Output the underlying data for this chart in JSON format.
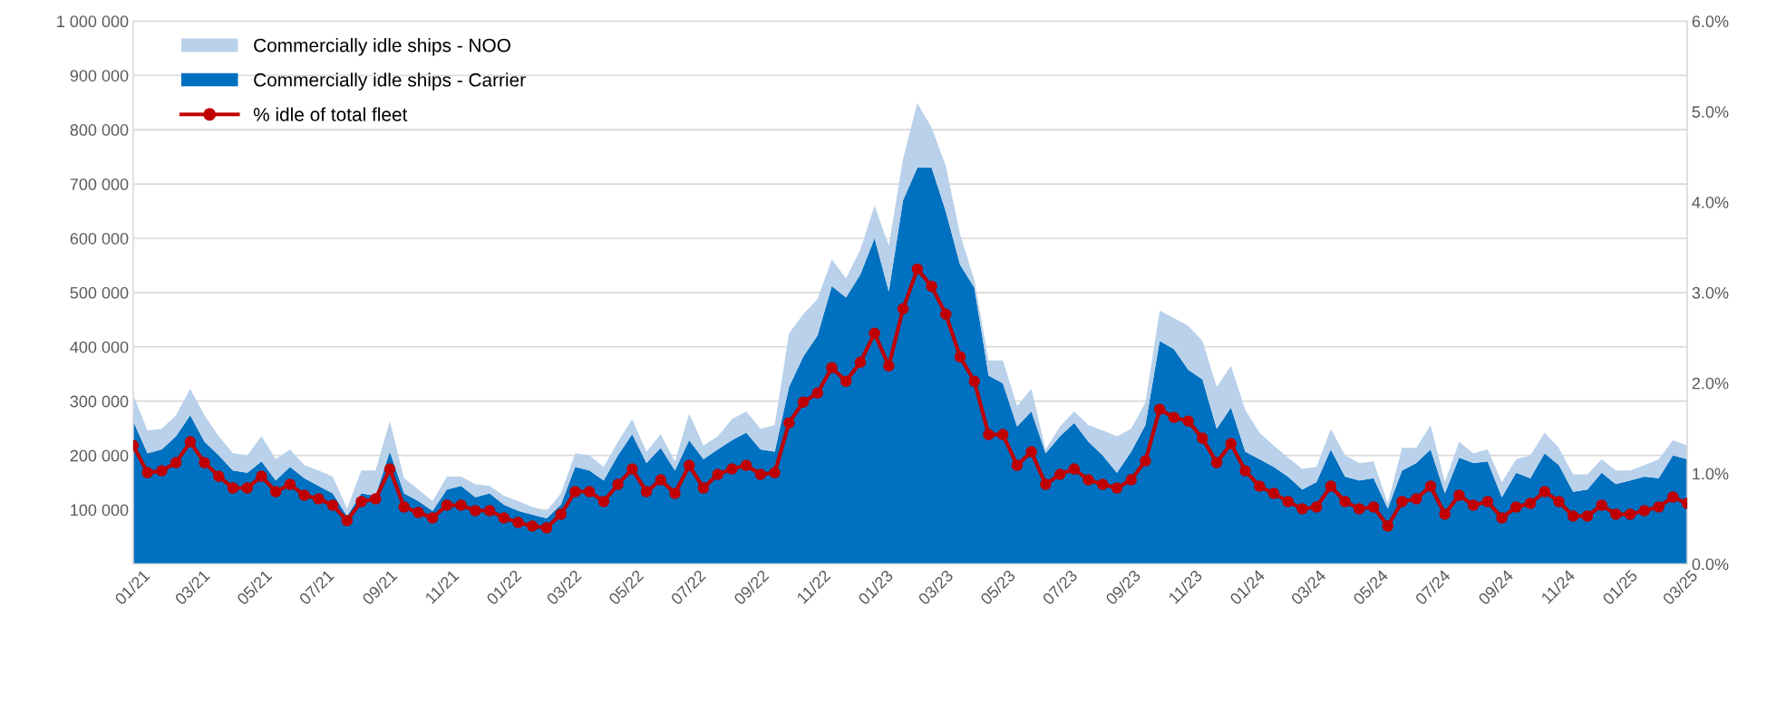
{
  "chart_data": {
    "type": "area",
    "stacked": true,
    "legend": "top left",
    "grid": "y",
    "tick_labels": "xy",
    "x": [
      "2021-01-01",
      "2021-01-15",
      "2021-01-29",
      "2021-02-12",
      "2021-02-26",
      "2021-03-12",
      "2021-03-26",
      "2021-04-09",
      "2021-04-23",
      "2021-05-07",
      "2021-05-21",
      "2021-06-04",
      "2021-06-18",
      "2021-07-02",
      "2021-07-16",
      "2021-07-30",
      "2021-08-13",
      "2021-08-27",
      "2021-09-10",
      "2021-09-24",
      "2021-10-08",
      "2021-10-22",
      "2021-11-05",
      "2021-11-19",
      "2021-12-03",
      "2021-12-17",
      "2021-12-31",
      "2022-01-14",
      "2022-01-28",
      "2022-02-11",
      "2022-02-25",
      "2022-03-11",
      "2022-03-25",
      "2022-04-08",
      "2022-04-22",
      "2022-05-06",
      "2022-05-20",
      "2022-06-03",
      "2022-06-17",
      "2022-07-01",
      "2022-07-15",
      "2022-07-29",
      "2022-08-12",
      "2022-08-26",
      "2022-09-09",
      "2022-09-23",
      "2022-10-07",
      "2022-10-21",
      "2022-11-04",
      "2022-11-18",
      "2022-12-02",
      "2022-12-16",
      "2022-12-30",
      "2023-01-13",
      "2023-01-27",
      "2023-02-10",
      "2023-02-24",
      "2023-03-10",
      "2023-03-24",
      "2023-04-07",
      "2023-04-21",
      "2023-05-05",
      "2023-05-19",
      "2023-06-02",
      "2023-06-16",
      "2023-06-30",
      "2023-07-14",
      "2023-07-28",
      "2023-08-11",
      "2023-08-25",
      "2023-09-08",
      "2023-09-22",
      "2023-10-06",
      "2023-10-20",
      "2023-11-03",
      "2023-11-17",
      "2023-12-01",
      "2023-12-15",
      "2023-12-29",
      "2024-01-12",
      "2024-01-26",
      "2024-02-09",
      "2024-02-23",
      "2024-03-08",
      "2024-03-22",
      "2024-04-05",
      "2024-04-19",
      "2024-05-03",
      "2024-05-17",
      "2024-05-31",
      "2024-06-14",
      "2024-06-28",
      "2024-07-12",
      "2024-07-26",
      "2024-08-09",
      "2024-08-23",
      "2024-09-06",
      "2024-09-20",
      "2024-10-04",
      "2024-10-18",
      "2024-11-01",
      "2024-11-15",
      "2024-11-29",
      "2024-12-13",
      "2024-12-27",
      "2025-01-10",
      "2025-01-24",
      "2025-02-07",
      "2025-02-21",
      "2025-03-07"
    ],
    "series": [
      {
        "name": "Commercially idle ships - Carrier",
        "color": "#0070c0",
        "values": [
          263000,
          204000,
          211000,
          235000,
          274000,
          225000,
          200000,
          172000,
          168000,
          189000,
          154000,
          179000,
          158000,
          144000,
          130000,
          88000,
          130000,
          126000,
          207000,
          130000,
          116000,
          98000,
          137000,
          144000,
          123000,
          130000,
          109000,
          98000,
          91000,
          84000,
          109000,
          179000,
          172000,
          154000,
          200000,
          239000,
          186000,
          214000,
          172000,
          228000,
          193000,
          211000,
          228000,
          242000,
          211000,
          207000,
          326000,
          382000,
          421000,
          512000,
          491000,
          533000,
          600000,
          502000,
          670000,
          730000,
          730000,
          649000,
          551000,
          509000,
          347000,
          333000,
          253000,
          281000,
          204000,
          235000,
          260000,
          225000,
          200000,
          168000,
          207000,
          256000,
          411000,
          396000,
          358000,
          340000,
          249000,
          288000,
          207000,
          193000,
          179000,
          161000,
          137000,
          151000,
          211000,
          161000,
          154000,
          158000,
          102000,
          172000,
          186000,
          211000,
          130000,
          196000,
          186000,
          189000,
          123000,
          168000,
          158000,
          204000,
          182000,
          133000,
          137000,
          168000,
          147000,
          154000,
          161000,
          158000,
          200000,
          193000
        ]
      },
      {
        "name": "Commercially idle ships - NOO",
        "color": "#b9d1ea",
        "values": [
          49000,
          42000,
          38000,
          39000,
          49000,
          49000,
          35000,
          32000,
          32000,
          46000,
          39000,
          32000,
          24000,
          28000,
          31000,
          14000,
          42000,
          46000,
          56000,
          28000,
          21000,
          18000,
          24000,
          17000,
          24000,
          14000,
          17000,
          18000,
          14000,
          14000,
          21000,
          25000,
          28000,
          25000,
          25000,
          28000,
          21000,
          25000,
          17000,
          49000,
          25000,
          24000,
          39000,
          39000,
          38000,
          49000,
          99000,
          78000,
          67000,
          49000,
          35000,
          46000,
          60000,
          84000,
          77000,
          119000,
          74000,
          84000,
          56000,
          14000,
          28000,
          42000,
          38000,
          42000,
          7000,
          18000,
          21000,
          31000,
          46000,
          67000,
          42000,
          42000,
          56000,
          57000,
          81000,
          71000,
          77000,
          77000,
          77000,
          49000,
          39000,
          35000,
          38000,
          28000,
          38000,
          39000,
          32000,
          31000,
          10000,
          42000,
          28000,
          45000,
          21000,
          29000,
          18000,
          22000,
          28000,
          25000,
          42000,
          38000,
          32000,
          32000,
          28000,
          25000,
          25000,
          18000,
          21000,
          35000,
          28000,
          25000
        ]
      },
      {
        "name": "% idle of total fleet",
        "type": "line",
        "axis": "y2",
        "color": "#c00000",
        "marker": "circle",
        "line_style": "solid",
        "values": [
          1.31,
          1.01,
          1.03,
          1.12,
          1.35,
          1.12,
          0.97,
          0.84,
          0.84,
          0.97,
          0.8,
          0.88,
          0.76,
          0.72,
          0.65,
          0.48,
          0.69,
          0.72,
          1.05,
          0.63,
          0.57,
          0.51,
          0.65,
          0.65,
          0.59,
          0.59,
          0.51,
          0.46,
          0.42,
          0.4,
          0.55,
          0.8,
          0.8,
          0.69,
          0.88,
          1.05,
          0.8,
          0.93,
          0.78,
          1.09,
          0.84,
          0.99,
          1.05,
          1.09,
          0.99,
          1.01,
          1.56,
          1.79,
          1.89,
          2.17,
          2.02,
          2.23,
          2.55,
          2.19,
          2.82,
          3.26,
          3.07,
          2.76,
          2.29,
          2.02,
          1.43,
          1.43,
          1.09,
          1.24,
          0.88,
          0.99,
          1.05,
          0.93,
          0.88,
          0.84,
          0.93,
          1.14,
          1.71,
          1.62,
          1.58,
          1.39,
          1.12,
          1.33,
          1.03,
          0.86,
          0.78,
          0.69,
          0.61,
          0.63,
          0.86,
          0.69,
          0.61,
          0.63,
          0.42,
          0.69,
          0.72,
          0.86,
          0.55,
          0.76,
          0.65,
          0.69,
          0.51,
          0.63,
          0.67,
          0.8,
          0.69,
          0.53,
          0.53,
          0.65,
          0.55,
          0.55,
          0.59,
          0.63,
          0.74,
          0.67
        ]
      }
    ],
    "xlim": [
      "2021-01-01",
      "2025-03-07"
    ],
    "xticks": [
      {
        "value": "2021-01-01",
        "label": "01/21"
      },
      {
        "value": "2021-03-01",
        "label": "03/21"
      },
      {
        "value": "2021-05-01",
        "label": "05/21"
      },
      {
        "value": "2021-07-01",
        "label": "07/21"
      },
      {
        "value": "2021-09-01",
        "label": "09/21"
      },
      {
        "value": "2021-11-01",
        "label": "11/21"
      },
      {
        "value": "2022-01-01",
        "label": "01/22"
      },
      {
        "value": "2022-03-01",
        "label": "03/22"
      },
      {
        "value": "2022-05-01",
        "label": "05/22"
      },
      {
        "value": "2022-07-01",
        "label": "07/22"
      },
      {
        "value": "2022-09-01",
        "label": "09/22"
      },
      {
        "value": "2022-11-01",
        "label": "11/22"
      },
      {
        "value": "2023-01-01",
        "label": "01/23"
      },
      {
        "value": "2023-03-01",
        "label": "03/23"
      },
      {
        "value": "2023-05-01",
        "label": "05/23"
      },
      {
        "value": "2023-07-01",
        "label": "07/23"
      },
      {
        "value": "2023-09-01",
        "label": "09/23"
      },
      {
        "value": "2023-11-01",
        "label": "11/23"
      },
      {
        "value": "2024-01-01",
        "label": "01/24"
      },
      {
        "value": "2024-03-01",
        "label": "03/24"
      },
      {
        "value": "2024-05-01",
        "label": "05/24"
      },
      {
        "value": "2024-07-01",
        "label": "07/24"
      },
      {
        "value": "2024-09-01",
        "label": "09/24"
      },
      {
        "value": "2024-11-01",
        "label": "11/24"
      },
      {
        "value": "2025-01-01",
        "label": "01/25"
      },
      {
        "value": "2025-03-01",
        "label": "03/25"
      }
    ],
    "ylim": [
      0,
      1000000
    ],
    "yticks": [
      {
        "value": 0,
        "label": null
      },
      {
        "value": 100000,
        "label": "100 000"
      },
      {
        "value": 200000,
        "label": "200 000"
      },
      {
        "value": 300000,
        "label": "300 000"
      },
      {
        "value": 400000,
        "label": "400 000"
      },
      {
        "value": 500000,
        "label": "500 000"
      },
      {
        "value": 600000,
        "label": "600 000"
      },
      {
        "value": 700000,
        "label": "700 000"
      },
      {
        "value": 800000,
        "label": "800 000"
      },
      {
        "value": 900000,
        "label": "900 000"
      },
      {
        "value": 1000000,
        "label": "1 000 000"
      }
    ],
    "y2lim": [
      0,
      6
    ],
    "y2ticks": [
      {
        "value": 0,
        "label": "0.0%"
      },
      {
        "value": 1,
        "label": "1.0%"
      },
      {
        "value": 2,
        "label": "2.0%"
      },
      {
        "value": 3,
        "label": "3.0%"
      },
      {
        "value": 4,
        "label": "4.0%"
      },
      {
        "value": 5,
        "label": "5.0%"
      },
      {
        "value": 6,
        "label": "6.0%"
      }
    ]
  }
}
